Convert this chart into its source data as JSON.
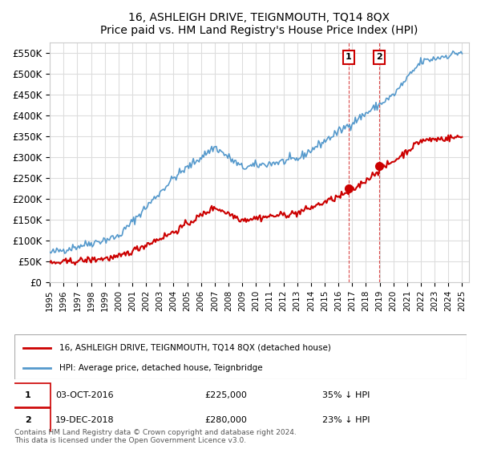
{
  "title": "16, ASHLEIGH DRIVE, TEIGNMOUTH, TQ14 8QX",
  "subtitle": "Price paid vs. HM Land Registry's House Price Index (HPI)",
  "ylim": [
    0,
    575000
  ],
  "yticks": [
    0,
    50000,
    100000,
    150000,
    200000,
    250000,
    300000,
    350000,
    400000,
    450000,
    500000,
    550000
  ],
  "ytick_labels": [
    "£0",
    "£50K",
    "£100K",
    "£150K",
    "£200K",
    "£250K",
    "£300K",
    "£350K",
    "£400K",
    "£450K",
    "£500K",
    "£550K"
  ],
  "x_start_year": 1995,
  "x_end_year": 2025,
  "red_line_color": "#cc0000",
  "blue_line_color": "#5599cc",
  "sale1_date": "03-OCT-2016",
  "sale1_price": 225000,
  "sale1_pct": "35%",
  "sale2_date": "19-DEC-2018",
  "sale2_price": 280000,
  "sale2_pct": "23%",
  "legend_label_red": "16, ASHLEIGH DRIVE, TEIGNMOUTH, TQ14 8QX (detached house)",
  "legend_label_blue": "HPI: Average price, detached house, Teignbridge",
  "footer": "Contains HM Land Registry data © Crown copyright and database right 2024.\nThis data is licensed under the Open Government Licence v3.0.",
  "background_color": "#ffffff",
  "grid_color": "#dddddd"
}
